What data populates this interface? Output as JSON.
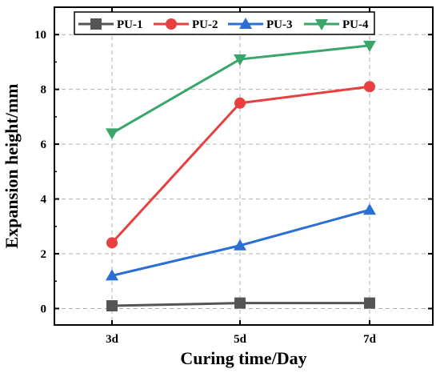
{
  "chart_data": {
    "type": "line",
    "title": "",
    "xlabel": "Curing time/Day",
    "ylabel": "Expansion height/mm",
    "categories": [
      "3d",
      "5d",
      "7d"
    ],
    "ylim": [
      -0.6,
      11
    ],
    "yticks": [
      0,
      2,
      4,
      6,
      8,
      10
    ],
    "grid": true,
    "legend_position": "top",
    "series": [
      {
        "name": "PU-1",
        "values": [
          0.1,
          0.2,
          0.2
        ],
        "color": "#555555",
        "marker": "square"
      },
      {
        "name": "PU-2",
        "values": [
          2.4,
          7.5,
          8.1
        ],
        "color": "#e84040",
        "marker": "circle"
      },
      {
        "name": "PU-3",
        "values": [
          1.2,
          2.3,
          3.6
        ],
        "color": "#2b6fd6",
        "marker": "triangle-up"
      },
      {
        "name": "PU-4",
        "values": [
          6.4,
          9.1,
          9.6
        ],
        "color": "#3aa66a",
        "marker": "triangle-down"
      }
    ]
  }
}
